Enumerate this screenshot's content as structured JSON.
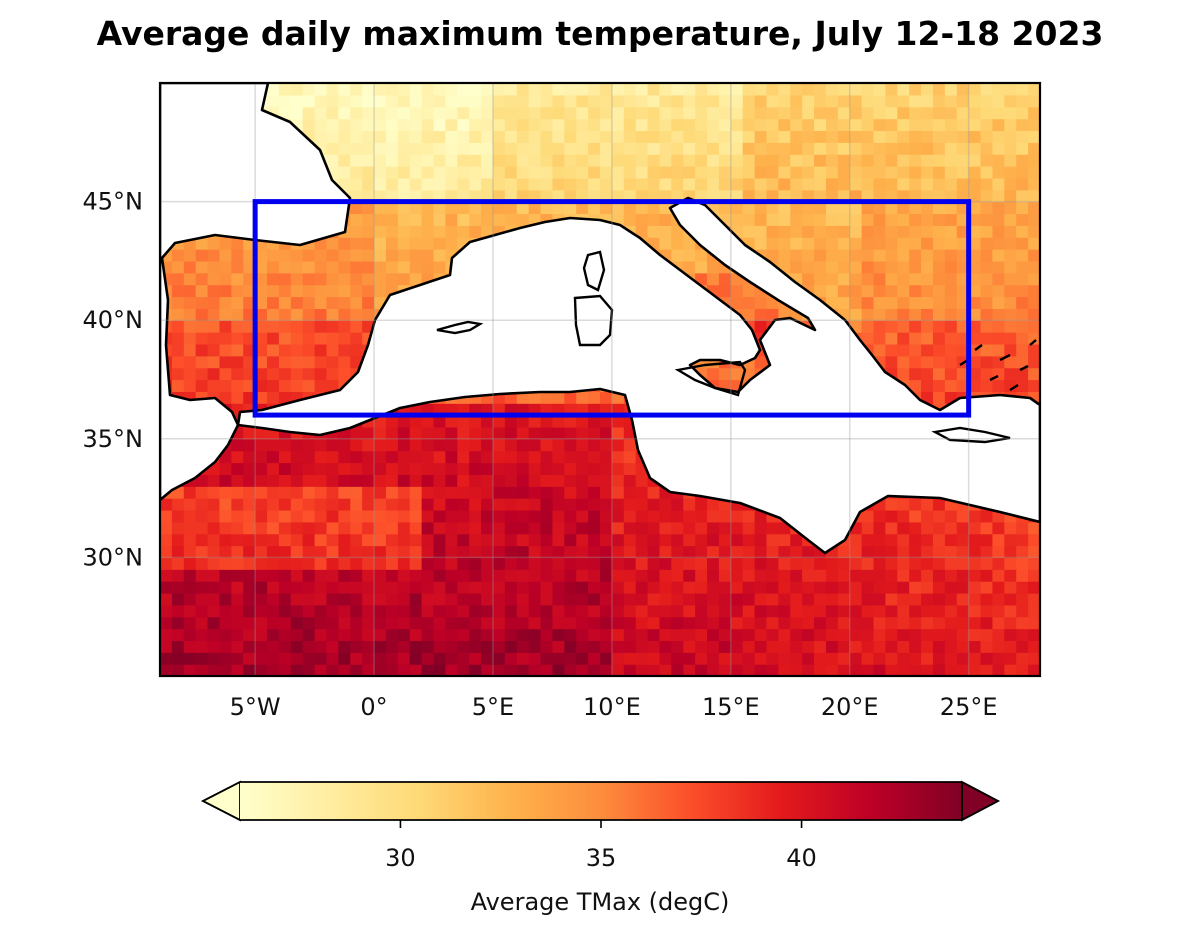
{
  "title": "Average daily maximum temperature, July 12-18 2023",
  "map": {
    "lon_range": [
      -9,
      28
    ],
    "lat_range": [
      25,
      50
    ],
    "lon_ticks": [
      {
        "value": -5,
        "label": "5°W"
      },
      {
        "value": 0,
        "label": "0°"
      },
      {
        "value": 5,
        "label": "5°E"
      },
      {
        "value": 10,
        "label": "10°E"
      },
      {
        "value": 15,
        "label": "15°E"
      },
      {
        "value": 20,
        "label": "20°E"
      },
      {
        "value": 25,
        "label": "25°E"
      }
    ],
    "lat_ticks": [
      {
        "value": 45,
        "label": "45°N"
      },
      {
        "value": 40,
        "label": "40°N"
      },
      {
        "value": 35,
        "label": "35°N"
      },
      {
        "value": 30,
        "label": "30°N"
      }
    ],
    "region_box": {
      "lon_min": -5,
      "lon_max": 25,
      "lat_min": 36,
      "lat_max": 45,
      "color": "#0000ee"
    }
  },
  "colorbar": {
    "label": "Average TMax (degC)",
    "range": [
      26,
      44
    ],
    "ticks": [
      30,
      35,
      40
    ],
    "colors": [
      "#ffffcc",
      "#ffeda0",
      "#fed976",
      "#feb24c",
      "#fd8d3c",
      "#fc4e2a",
      "#e31a1c",
      "#bd0026",
      "#800026"
    ]
  }
}
